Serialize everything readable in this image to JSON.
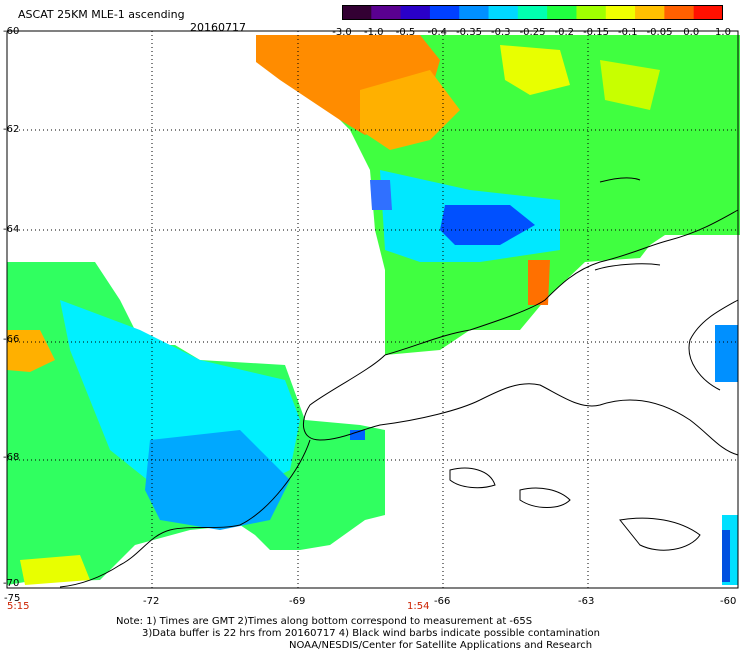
{
  "header": {
    "title": "ASCAT 25KM MLE-1 ascending",
    "date": "20160717"
  },
  "colorbar": {
    "ticks": [
      "-3.0",
      "-1.0",
      "-0.5",
      "-0.4",
      "-0.35",
      "-0.3",
      "-0.25",
      "-0.2",
      "-0.15",
      "-0.1",
      "-0.05",
      "0.0",
      "1.0"
    ],
    "colors": [
      "#330033",
      "#5a0090",
      "#2a00c8",
      "#0040ff",
      "#0090ff",
      "#00d8ff",
      "#00ffb0",
      "#20ff40",
      "#a0ff00",
      "#f0ff00",
      "#ffc000",
      "#ff6000",
      "#ff1000"
    ]
  },
  "axes": {
    "lat_labels": [
      "-60",
      "-62",
      "-64",
      "-66",
      "-68",
      "-70"
    ],
    "lon_labels": [
      "-75",
      "-72",
      "-69",
      "-66",
      "-63",
      "-60"
    ]
  },
  "time_labels": [
    "5:15",
    "1:54"
  ],
  "notes": {
    "line1": "Note: 1) Times are GMT 2)Times along bottom correspond to measurement at -65S",
    "line2": "3)Data buffer is 22 hrs from 20160717 4) Black wind barbs indicate possible contamination",
    "line3": "NOAA/NESDIS/Center for Satellite Applications and Research"
  }
}
